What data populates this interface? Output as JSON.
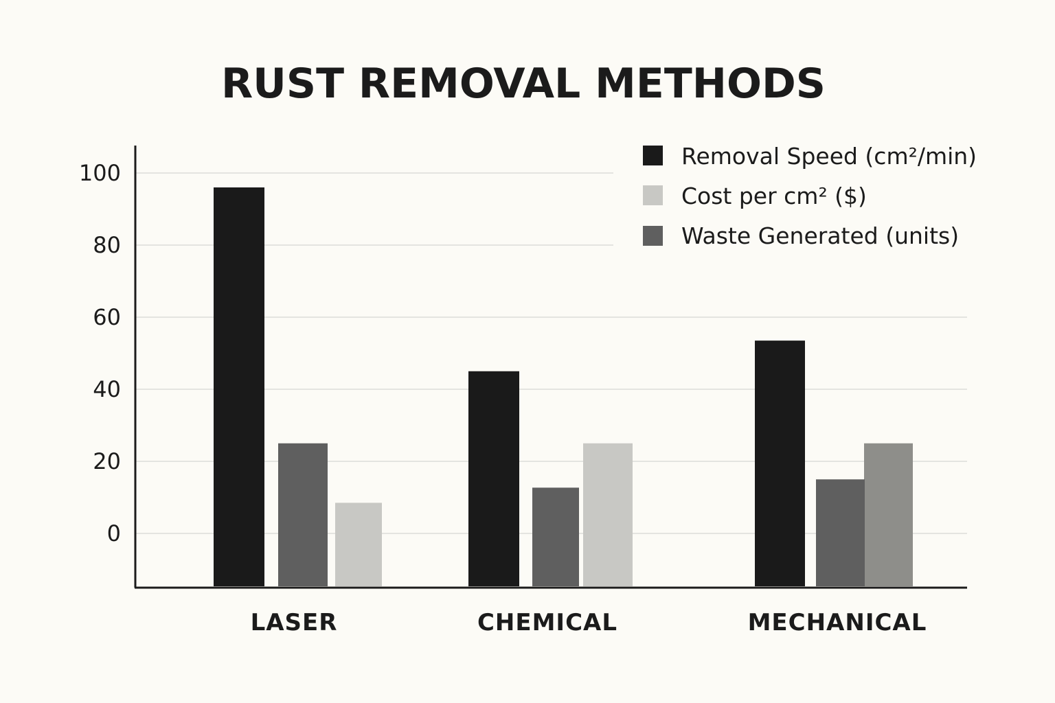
{
  "chart_data": {
    "type": "bar",
    "title": "RUST REMOVAL METHODS",
    "xlabel": "",
    "ylabel": "",
    "categories": [
      "LASER",
      "CHEMICAL",
      "MECHANICAL"
    ],
    "y_ticks": [
      "100",
      "80",
      "60",
      "40",
      "20",
      "0"
    ],
    "ylim": [
      -15,
      108
    ],
    "grid": true,
    "legend_position": "top-right",
    "series": [
      {
        "name": "Removal Speed (cm²/min)",
        "color": "#1a1a1a",
        "values": [
          96,
          45,
          53.5
        ]
      },
      {
        "name": "Cost per cm² ($)",
        "color": "#c8c8c4",
        "values": [
          8.5,
          25,
          25
        ]
      },
      {
        "name": "Waste Generated (units)",
        "color": "#5f5f5f",
        "values": [
          25,
          12.7,
          15
        ]
      }
    ]
  }
}
